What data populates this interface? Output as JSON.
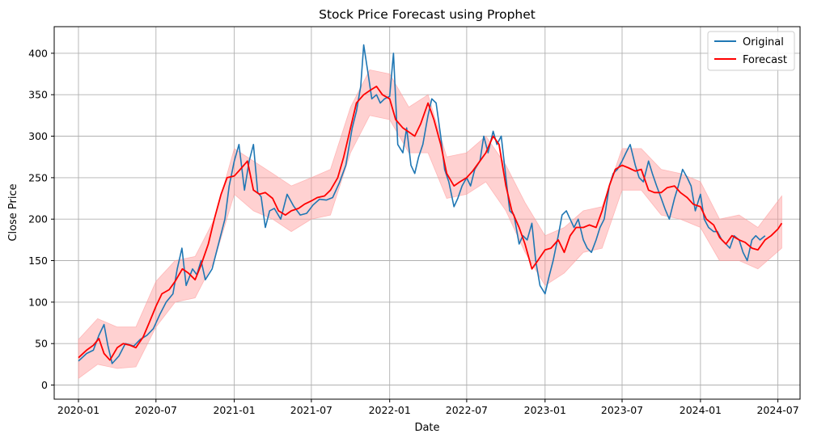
{
  "chart_data": {
    "type": "line",
    "title": "Stock Price Forecast using Prophet",
    "xlabel": "Date",
    "ylabel": "Close Price",
    "x_range": [
      "2019-11-05",
      "2024-08-22"
    ],
    "ylim": [
      -17,
      432
    ],
    "x_ticks": [
      "2020-01",
      "2020-07",
      "2021-01",
      "2021-07",
      "2022-01",
      "2022-07",
      "2023-01",
      "2023-07",
      "2024-01",
      "2024-07"
    ],
    "y_ticks": [
      0,
      50,
      100,
      150,
      200,
      250,
      300,
      350,
      400
    ],
    "grid": true,
    "legend": {
      "position": "top-right",
      "entries": [
        "Original",
        "Forecast"
      ]
    },
    "colors": {
      "original": "#1f77b4",
      "forecast": "#ff0000",
      "band": "#ff9999"
    },
    "series": [
      {
        "name": "Original",
        "x": [
          "2020-01-01",
          "2020-01-20",
          "2020-02-05",
          "2020-02-18",
          "2020-03-01",
          "2020-03-10",
          "2020-03-20",
          "2020-04-05",
          "2020-04-20",
          "2020-05-10",
          "2020-05-25",
          "2020-06-10",
          "2020-06-25",
          "2020-07-10",
          "2020-07-25",
          "2020-08-10",
          "2020-08-20",
          "2020-08-31",
          "2020-09-10",
          "2020-09-25",
          "2020-10-05",
          "2020-10-15",
          "2020-10-25",
          "2020-11-10",
          "2020-11-25",
          "2020-12-10",
          "2020-12-20",
          "2021-01-01",
          "2021-01-12",
          "2021-01-25",
          "2021-02-05",
          "2021-02-15",
          "2021-02-25",
          "2021-03-05",
          "2021-03-15",
          "2021-03-25",
          "2021-04-05",
          "2021-04-20",
          "2021-05-05",
          "2021-05-20",
          "2021-06-05",
          "2021-06-20",
          "2021-07-05",
          "2021-07-20",
          "2021-08-05",
          "2021-08-20",
          "2021-09-05",
          "2021-09-20",
          "2021-10-05",
          "2021-10-15",
          "2021-10-25",
          "2021-11-01",
          "2021-11-10",
          "2021-11-20",
          "2021-12-01",
          "2021-12-10",
          "2021-12-20",
          "2022-01-01",
          "2022-01-10",
          "2022-01-20",
          "2022-02-01",
          "2022-02-10",
          "2022-02-20",
          "2022-03-01",
          "2022-03-10",
          "2022-03-20",
          "2022-04-01",
          "2022-04-10",
          "2022-04-20",
          "2022-05-01",
          "2022-05-10",
          "2022-05-20",
          "2022-06-01",
          "2022-06-10",
          "2022-06-20",
          "2022-07-01",
          "2022-07-10",
          "2022-07-20",
          "2022-08-01",
          "2022-08-10",
          "2022-08-20",
          "2022-09-01",
          "2022-09-10",
          "2022-09-20",
          "2022-10-01",
          "2022-10-10",
          "2022-10-20",
          "2022-11-01",
          "2022-11-10",
          "2022-11-20",
          "2022-12-01",
          "2022-12-10",
          "2022-12-20",
          "2023-01-01",
          "2023-01-10",
          "2023-01-20",
          "2023-02-01",
          "2023-02-10",
          "2023-02-20",
          "2023-03-01",
          "2023-03-10",
          "2023-03-20",
          "2023-04-01",
          "2023-04-10",
          "2023-04-20",
          "2023-05-01",
          "2023-05-10",
          "2023-05-20",
          "2023-06-01",
          "2023-06-10",
          "2023-06-20",
          "2023-07-01",
          "2023-07-10",
          "2023-07-20",
          "2023-08-01",
          "2023-08-10",
          "2023-08-20",
          "2023-09-01",
          "2023-09-10",
          "2023-09-20",
          "2023-10-01",
          "2023-10-10",
          "2023-10-20",
          "2023-11-01",
          "2023-11-10",
          "2023-11-20",
          "2023-12-01",
          "2023-12-10",
          "2023-12-20",
          "2024-01-01",
          "2024-01-10",
          "2024-01-20",
          "2024-02-01",
          "2024-02-10",
          "2024-02-20",
          "2024-03-01",
          "2024-03-10",
          "2024-03-20",
          "2024-04-01",
          "2024-04-10",
          "2024-04-20",
          "2024-05-01",
          "2024-05-10",
          "2024-05-20",
          "2024-06-01"
        ],
        "values": [
          29,
          38,
          42,
          60,
          73,
          48,
          26,
          35,
          50,
          47,
          55,
          60,
          68,
          85,
          100,
          110,
          140,
          165,
          120,
          140,
          133,
          150,
          127,
          140,
          170,
          200,
          240,
          270,
          290,
          235,
          270,
          290,
          232,
          227,
          190,
          210,
          213,
          200,
          230,
          216,
          205,
          207,
          217,
          224,
          223,
          226,
          244,
          265,
          310,
          330,
          360,
          410,
          380,
          345,
          350,
          340,
          345,
          348,
          400,
          290,
          280,
          310,
          265,
          255,
          275,
          290,
          325,
          345,
          340,
          300,
          260,
          245,
          215,
          225,
          240,
          250,
          240,
          260,
          270,
          300,
          280,
          306,
          290,
          300,
          250,
          210,
          205,
          170,
          180,
          175,
          195,
          150,
          120,
          110,
          130,
          150,
          180,
          205,
          210,
          200,
          190,
          200,
          175,
          165,
          160,
          175,
          190,
          200,
          240,
          255,
          260,
          270,
          280,
          290,
          265,
          250,
          245,
          270,
          255,
          240,
          225,
          212,
          200,
          225,
          240,
          260,
          250,
          240,
          210,
          230,
          200,
          190,
          185,
          185,
          175,
          170,
          165,
          180,
          175,
          160,
          150,
          175,
          180,
          175,
          180
        ]
      },
      {
        "name": "Forecast",
        "x": [
          "2020-01-01",
          "2020-01-20",
          "2020-02-05",
          "2020-02-18",
          "2020-03-01",
          "2020-03-15",
          "2020-04-01",
          "2020-04-15",
          "2020-05-01",
          "2020-05-15",
          "2020-06-01",
          "2020-06-15",
          "2020-07-01",
          "2020-07-15",
          "2020-08-01",
          "2020-08-15",
          "2020-09-01",
          "2020-09-15",
          "2020-10-01",
          "2020-10-15",
          "2020-11-01",
          "2020-11-15",
          "2020-12-01",
          "2020-12-15",
          "2021-01-01",
          "2021-01-15",
          "2021-02-01",
          "2021-02-15",
          "2021-03-01",
          "2021-03-15",
          "2021-04-01",
          "2021-04-15",
          "2021-05-01",
          "2021-05-15",
          "2021-06-01",
          "2021-06-15",
          "2021-07-01",
          "2021-07-15",
          "2021-08-01",
          "2021-08-15",
          "2021-09-01",
          "2021-09-15",
          "2021-10-01",
          "2021-10-15",
          "2021-11-01",
          "2021-11-15",
          "2021-12-01",
          "2021-12-15",
          "2022-01-01",
          "2022-01-15",
          "2022-02-01",
          "2022-02-15",
          "2022-03-01",
          "2022-03-15",
          "2022-04-01",
          "2022-04-15",
          "2022-05-01",
          "2022-05-15",
          "2022-06-01",
          "2022-06-15",
          "2022-07-01",
          "2022-07-15",
          "2022-08-01",
          "2022-08-15",
          "2022-09-01",
          "2022-09-15",
          "2022-10-01",
          "2022-10-15",
          "2022-11-01",
          "2022-11-15",
          "2022-12-01",
          "2022-12-15",
          "2023-01-01",
          "2023-01-15",
          "2023-02-01",
          "2023-02-15",
          "2023-03-01",
          "2023-03-15",
          "2023-04-01",
          "2023-04-15",
          "2023-05-01",
          "2023-05-15",
          "2023-06-01",
          "2023-06-15",
          "2023-07-01",
          "2023-07-15",
          "2023-08-01",
          "2023-08-15",
          "2023-09-01",
          "2023-09-15",
          "2023-10-01",
          "2023-10-15",
          "2023-11-01",
          "2023-11-15",
          "2023-12-01",
          "2023-12-15",
          "2024-01-01",
          "2024-01-15",
          "2024-02-01",
          "2024-02-15",
          "2024-03-01",
          "2024-03-15",
          "2024-04-01",
          "2024-04-15",
          "2024-05-01",
          "2024-05-15",
          "2024-06-01",
          "2024-06-15",
          "2024-07-01",
          "2024-07-10"
        ],
        "values": [
          33,
          42,
          48,
          56,
          38,
          30,
          45,
          50,
          48,
          45,
          58,
          75,
          95,
          110,
          115,
          125,
          140,
          135,
          127,
          145,
          170,
          200,
          230,
          250,
          252,
          260,
          270,
          235,
          230,
          232,
          225,
          210,
          205,
          210,
          213,
          218,
          222,
          226,
          228,
          235,
          250,
          275,
          310,
          340,
          350,
          355,
          360,
          350,
          345,
          320,
          310,
          305,
          300,
          315,
          340,
          320,
          290,
          255,
          240,
          245,
          250,
          258,
          270,
          280,
          300,
          290,
          240,
          210,
          190,
          170,
          140,
          150,
          163,
          165,
          175,
          160,
          180,
          190,
          190,
          193,
          190,
          210,
          240,
          260,
          265,
          262,
          258,
          260,
          235,
          232,
          232,
          238,
          240,
          232,
          226,
          218,
          215,
          200,
          193,
          178,
          170,
          180,
          175,
          172,
          165,
          163,
          175,
          180,
          188,
          195
        ]
      }
    ],
    "uncertainty_band": {
      "x": [
        "2020-01-01",
        "2020-02-15",
        "2020-04-01",
        "2020-05-15",
        "2020-07-01",
        "2020-08-15",
        "2020-10-01",
        "2020-11-15",
        "2021-01-01",
        "2021-02-15",
        "2021-04-01",
        "2021-05-15",
        "2021-07-01",
        "2021-08-15",
        "2021-10-01",
        "2021-11-15",
        "2022-01-01",
        "2022-02-15",
        "2022-04-01",
        "2022-05-15",
        "2022-07-01",
        "2022-08-15",
        "2022-10-01",
        "2022-11-15",
        "2023-01-01",
        "2023-02-15",
        "2023-04-01",
        "2023-05-15",
        "2023-07-01",
        "2023-08-15",
        "2023-10-01",
        "2023-11-15",
        "2024-01-01",
        "2024-02-15",
        "2024-04-01",
        "2024-05-15",
        "2024-07-10"
      ],
      "lower": [
        8,
        25,
        20,
        22,
        70,
        100,
        105,
        150,
        230,
        210,
        200,
        185,
        200,
        205,
        280,
        325,
        320,
        280,
        280,
        225,
        230,
        245,
        210,
        160,
        120,
        135,
        160,
        165,
        235,
        235,
        205,
        200,
        190,
        150,
        150,
        140,
        165
      ],
      "upper": [
        55,
        80,
        70,
        70,
        125,
        150,
        155,
        200,
        285,
        270,
        255,
        240,
        250,
        260,
        335,
        380,
        375,
        335,
        350,
        275,
        280,
        300,
        265,
        220,
        180,
        190,
        210,
        215,
        285,
        285,
        260,
        255,
        245,
        200,
        205,
        190,
        228
      ]
    }
  }
}
